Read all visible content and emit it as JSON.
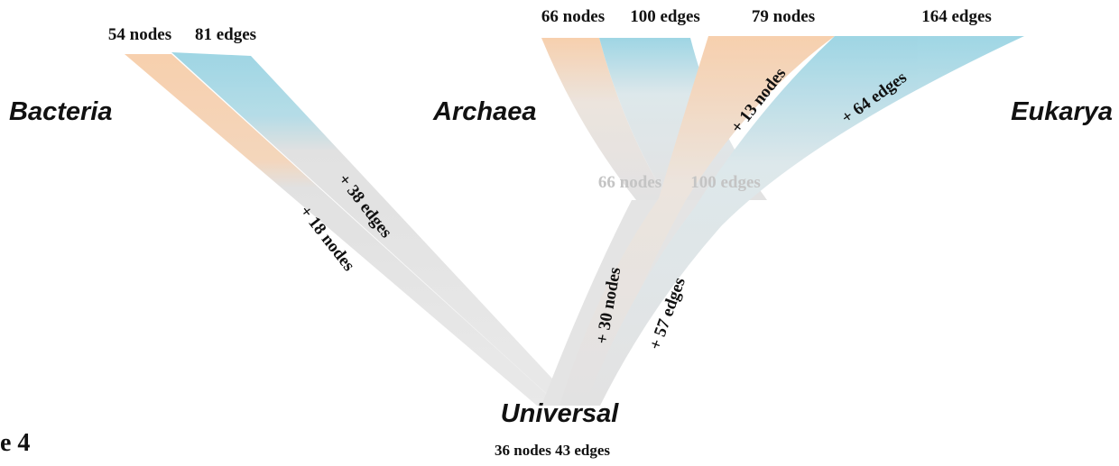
{
  "tree": {
    "leaves": {
      "bacteria": {
        "label": "Bacteria",
        "nodes": "54 nodes",
        "edges": "81 edges",
        "gain_nodes": "+ 18 nodes",
        "gain_edges": "+ 38 edges"
      },
      "archaea": {
        "label": "Archaea",
        "nodes": "66 nodes",
        "edges": "100 edges"
      },
      "eukarya": {
        "label": "Eukarya",
        "nodes": "79 nodes",
        "edges": "164 edges",
        "gain_nodes": "+ 13 nodes",
        "gain_edges": "+ 64 edges"
      }
    },
    "ancestor": {
      "nodes": "66 nodes",
      "edges": "100 edges",
      "gain_nodes": "+ 30 nodes",
      "gain_edges": "+ 57 edges"
    },
    "root": {
      "label": "Universal",
      "summary": "36 nodes 43 edges"
    }
  },
  "figure_label": "e 4"
}
